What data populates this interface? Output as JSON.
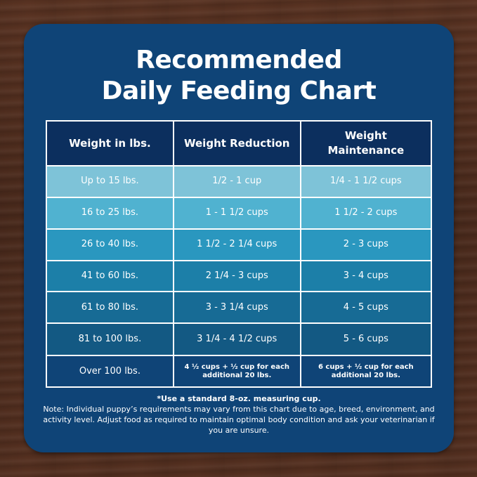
{
  "title": {
    "line1": "Recommended",
    "line2": "Daily Feeding Chart"
  },
  "table": {
    "headers": [
      "Weight in lbs.",
      "Weight Reduction",
      "Weight Maintenance"
    ],
    "rows": [
      [
        "Up to 15 lbs.",
        "1/2 - 1 cup",
        "1/4 - 1 1/2 cups"
      ],
      [
        "16 to 25 lbs.",
        "1 - 1 1/2 cups",
        "1 1/2 - 2 cups"
      ],
      [
        "26 to 40 lbs.",
        "1 1/2 - 2 1/4 cups",
        "2 - 3 cups"
      ],
      [
        "41 to 60 lbs.",
        "2 1/4 - 3 cups",
        "3 - 4 cups"
      ],
      [
        "61 to 80 lbs.",
        "3 - 3 1/4 cups",
        "4 - 5 cups"
      ],
      [
        "81 to 100 lbs.",
        "3 1/4 - 4 1/2 cups",
        "5 - 6 cups"
      ],
      [
        "Over 100 lbs.",
        "4 ½ cups + ½ cup for each additional 20 lbs.",
        "6 cups + ½ cup for each additional 20 lbs."
      ]
    ]
  },
  "footnote": {
    "measure": "*Use a standard 8-oz. measuring cup.",
    "note": "Note: Individual puppy’s requirements may vary from this chart due to age, breed, environment, and activity level. Adjust food as required to maintain optimal body condition and ask your veterinarian if you are unsure."
  },
  "colors": {
    "board": "#0f4477",
    "header": "#0c2f5e",
    "row_shades": [
      "#7ec3d8",
      "#50b2d0",
      "#2a97bf",
      "#1c7fa8",
      "#176b95",
      "#135983",
      "#0f4477"
    ]
  }
}
